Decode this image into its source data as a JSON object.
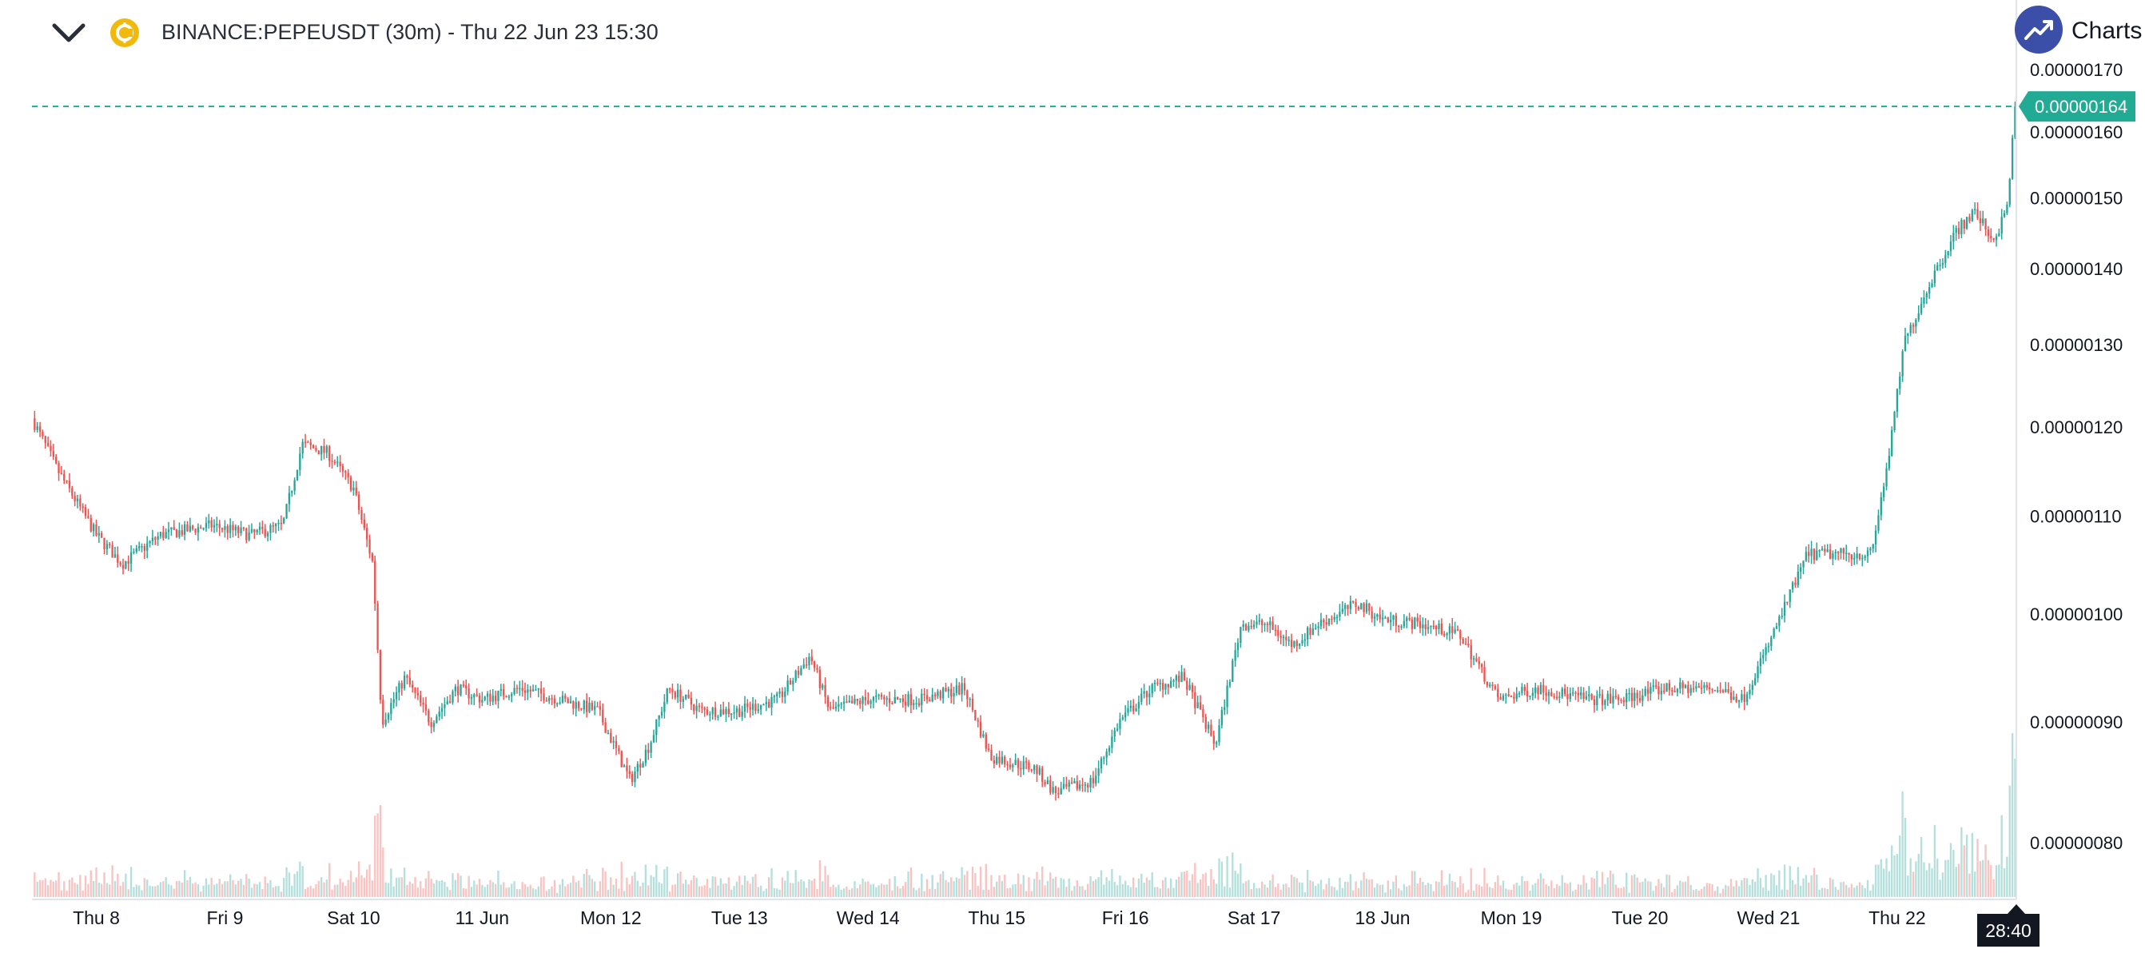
{
  "header": {
    "title": "BINANCE:PEPEUSDT (30m) - Thu 22 Jun 23 15:30",
    "collapse_icon": "chevron-down-icon",
    "symbol_icon": "coin-icon"
  },
  "badge": {
    "label": "Charts p",
    "icon": "trend-up-icon"
  },
  "colors": {
    "up": "#26a69a",
    "down": "#ef5350",
    "last_price": "#22ab94",
    "badge_bg": "#3b4ea8",
    "coin": "#f0b90b"
  },
  "countdown": "28:40",
  "chart_data": {
    "type": "candlestick",
    "symbol": "BINANCE:PEPEUSDT",
    "interval": "30m",
    "y_scale": "log",
    "ylim": [
      7.6e-07,
      1.72e-06
    ],
    "y_ticks": [
      "0.00000080",
      "0.00000090",
      "0.00000100",
      "0.00000110",
      "0.00000120",
      "0.00000130",
      "0.00000140",
      "0.00000150",
      "0.00000160",
      "0.00000170"
    ],
    "x_ticks": [
      "Thu 8",
      "Fri 9",
      "Sat 10",
      "11 Jun",
      "Mon 12",
      "Tue 13",
      "Wed 14",
      "Thu 15",
      "Fri 16",
      "Sat 17",
      "18 Jun",
      "Mon 19",
      "Tue 20",
      "Wed 21",
      "Thu 22"
    ],
    "last_price": "0.00000164",
    "last_price_value": 1.64e-06,
    "price_path": [
      [
        7.5,
        1.21e-06
      ],
      [
        7.7,
        1.15e-06
      ],
      [
        8.0,
        1.08e-06
      ],
      [
        8.2,
        1.05e-06
      ],
      [
        8.5,
        1.08e-06
      ],
      [
        8.9,
        1.09e-06
      ],
      [
        9.2,
        1.08e-06
      ],
      [
        9.45,
        1.09e-06
      ],
      [
        9.6,
        1.18e-06
      ],
      [
        9.8,
        1.17e-06
      ],
      [
        10.0,
        1.13e-06
      ],
      [
        10.15,
        1.05e-06
      ],
      [
        10.22,
        9e-07
      ],
      [
        10.4,
        9.4e-07
      ],
      [
        10.6,
        9e-07
      ],
      [
        10.8,
        9.3e-07
      ],
      [
        11.0,
        9.2e-07
      ],
      [
        11.3,
        9.3e-07
      ],
      [
        11.6,
        9.2e-07
      ],
      [
        11.9,
        9.1e-07
      ],
      [
        12.15,
        8.5e-07
      ],
      [
        12.3,
        8.8e-07
      ],
      [
        12.45,
        9.3e-07
      ],
      [
        12.7,
        9.1e-07
      ],
      [
        13.0,
        9.1e-07
      ],
      [
        13.3,
        9.2e-07
      ],
      [
        13.55,
        9.6e-07
      ],
      [
        13.7,
        9.1e-07
      ],
      [
        14.0,
        9.2e-07
      ],
      [
        14.4,
        9.2e-07
      ],
      [
        14.75,
        9.3e-07
      ],
      [
        14.95,
        8.7e-07
      ],
      [
        15.3,
        8.6e-07
      ],
      [
        15.45,
        8.4e-07
      ],
      [
        15.75,
        8.5e-07
      ],
      [
        15.95,
        9e-07
      ],
      [
        16.2,
        9.3e-07
      ],
      [
        16.45,
        9.4e-07
      ],
      [
        16.7,
        8.8e-07
      ],
      [
        16.9,
        9.9e-07
      ],
      [
        17.1,
        9.9e-07
      ],
      [
        17.3,
        9.7e-07
      ],
      [
        17.5,
        9.9e-07
      ],
      [
        17.8,
        1.01e-06
      ],
      [
        18.0,
        9.95e-07
      ],
      [
        18.3,
        9.9e-07
      ],
      [
        18.6,
        9.8e-07
      ],
      [
        18.9,
        9.2e-07
      ],
      [
        19.2,
        9.3e-07
      ],
      [
        19.6,
        9.2e-07
      ],
      [
        19.85,
        9.2e-07
      ],
      [
        20.2,
        9.3e-07
      ],
      [
        20.6,
        9.3e-07
      ],
      [
        20.8,
        9.2e-07
      ],
      [
        21.0,
        9.7e-07
      ],
      [
        21.3,
        1.06e-06
      ],
      [
        21.6,
        1.06e-06
      ],
      [
        21.8,
        1.06e-06
      ],
      [
        21.95,
        1.18e-06
      ],
      [
        22.05,
        1.3e-06
      ],
      [
        22.25,
        1.38e-06
      ],
      [
        22.45,
        1.45e-06
      ],
      [
        22.6,
        1.48e-06
      ],
      [
        22.75,
        1.44e-06
      ],
      [
        22.85,
        1.48e-06
      ],
      [
        22.92,
        1.64e-06
      ]
    ]
  }
}
